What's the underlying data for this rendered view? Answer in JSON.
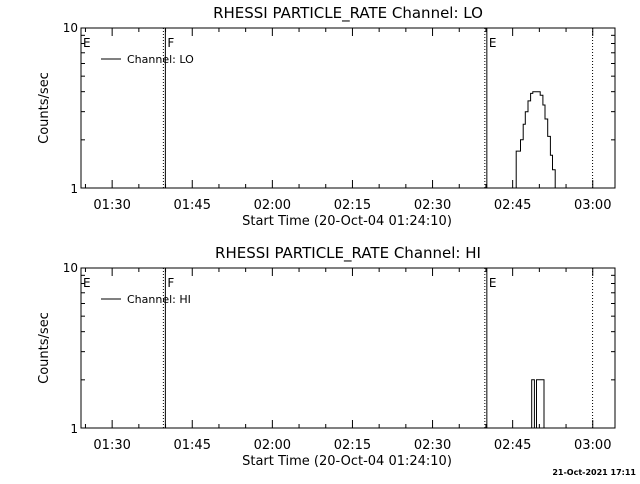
{
  "chart_data": [
    {
      "type": "line",
      "title": "RHESSI PARTICLE_RATE Channel: LO",
      "xlabel": "Start Time (20-Oct-04 01:24:10)",
      "ylabel": "Counts/sec",
      "x_tick_labels": [
        "01:30",
        "01:45",
        "02:00",
        "02:15",
        "02:30",
        "02:45",
        "03:00"
      ],
      "y_tick_labels": [
        "1",
        "10"
      ],
      "y_scale": "log",
      "ylim": [
        1,
        10
      ],
      "x_unit": "minutes after 01:24:10",
      "xlim": [
        0,
        100
      ],
      "grid": false,
      "legend_position": "top-left",
      "series": [
        {
          "name": "Channel: LO",
          "x": [
            81.2,
            81.5,
            81.5,
            81.9,
            81.9,
            82.3,
            82.3,
            82.8,
            82.8,
            83.2,
            83.2,
            83.7,
            83.7,
            84.2,
            84.2,
            84.6,
            84.6,
            85.1,
            85.1,
            85.5,
            85.5,
            86.0,
            86.0,
            86.5,
            86.5,
            86.9,
            86.9,
            87.4,
            87.4,
            87.9,
            87.9,
            88.3,
            88.3,
            88.8,
            88.8,
            89.3
          ],
          "y": [
            1.0,
            1.0,
            1.7,
            1.7,
            1.7,
            1.7,
            2.0,
            2.0,
            2.5,
            2.5,
            3.0,
            3.0,
            3.5,
            3.5,
            3.9,
            3.9,
            4.0,
            4.0,
            4.0,
            4.0,
            4.0,
            4.0,
            3.8,
            3.8,
            3.3,
            3.3,
            2.7,
            2.7,
            2.1,
            2.1,
            1.6,
            1.6,
            1.3,
            1.3,
            1.0,
            1.0
          ]
        }
      ],
      "markers": [
        {
          "label": "E",
          "x": 0.0,
          "style": "none"
        },
        {
          "label": "F",
          "x": 15.8,
          "style": "solid"
        },
        {
          "label": "E",
          "x": 76.0,
          "style": "solid"
        },
        {
          "label": "",
          "x": 95.8,
          "style": "dotted"
        }
      ]
    },
    {
      "type": "line",
      "title": "RHESSI PARTICLE_RATE Channel: HI",
      "xlabel": "Start Time (20-Oct-04 01:24:10)",
      "ylabel": "Counts/sec",
      "x_tick_labels": [
        "01:30",
        "01:45",
        "02:00",
        "02:15",
        "02:30",
        "02:45",
        "03:00"
      ],
      "y_tick_labels": [
        "1",
        "10"
      ],
      "y_scale": "log",
      "ylim": [
        1,
        10
      ],
      "x_unit": "minutes after 01:24:10",
      "xlim": [
        0,
        100
      ],
      "grid": false,
      "legend_position": "top-left",
      "series": [
        {
          "name": "Channel: HI",
          "x": [
            84.0,
            84.4,
            84.4,
            84.9,
            84.9,
            85.3,
            85.3,
            86.2,
            86.2,
            86.7,
            86.7,
            87.1,
            87.1,
            87.6
          ],
          "y": [
            1.0,
            1.0,
            2.0,
            2.0,
            1.0,
            1.0,
            2.0,
            2.0,
            2.0,
            2.0,
            1.0,
            1.0,
            1.0,
            1.0
          ]
        }
      ],
      "markers": [
        {
          "label": "E",
          "x": 0.0,
          "style": "none"
        },
        {
          "label": "F",
          "x": 15.8,
          "style": "solid"
        },
        {
          "label": "E",
          "x": 76.0,
          "style": "solid"
        },
        {
          "label": "",
          "x": 95.8,
          "style": "dotted"
        }
      ]
    }
  ],
  "footer": {
    "timestamp": "21-Oct-2021 17:11"
  }
}
